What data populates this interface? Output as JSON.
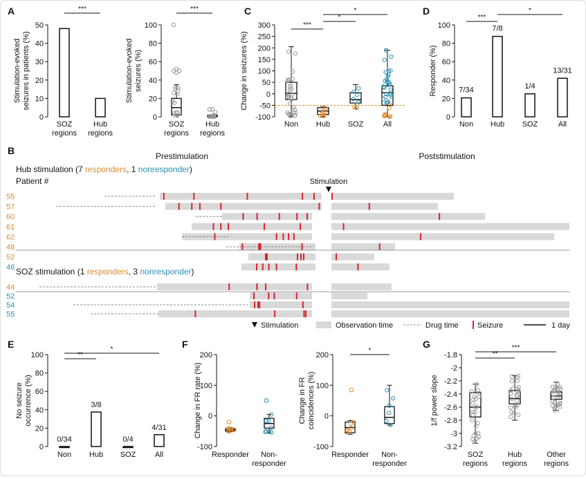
{
  "panels": {
    "A": {
      "letter": "A",
      "left": {
        "ylabel": [
          "Stimulation-evoked",
          "seizures in patients (%)"
        ],
        "yticks": [
          0,
          10,
          20,
          30,
          40,
          50
        ],
        "ylim": [
          0,
          50
        ],
        "categories": [
          [
            "SOZ",
            "regions"
          ],
          [
            "Hub",
            "regions"
          ]
        ],
        "values": [
          48,
          10
        ],
        "sig": "***"
      },
      "right": {
        "ylabel": [
          "Stimulation-evoked",
          "seizures (%)"
        ],
        "yticks": [
          0,
          20,
          40,
          60,
          80,
          100
        ],
        "ylim": [
          0,
          100
        ],
        "categories": [
          [
            "SOZ",
            "regions"
          ],
          [
            "Hub",
            "regions"
          ]
        ],
        "boxes": [
          {
            "q1": 2,
            "med": 10,
            "q3": 20,
            "min": 0,
            "max": 35,
            "outliers": [
              100,
              52,
              50,
              50,
              48
            ]
          },
          {
            "q1": 0,
            "med": 1,
            "q3": 2,
            "min": 0,
            "max": 2,
            "outliers": [
              8,
              8,
              5
            ]
          }
        ],
        "sig": "***"
      }
    },
    "C": {
      "letter": "C",
      "ylabel": "Change in seizures (%)",
      "yticks": [
        -100,
        -50,
        0,
        50,
        100,
        150,
        200,
        250,
        300
      ],
      "ylim": [
        -100,
        300
      ],
      "categories": [
        "Non",
        "Hub",
        "SOZ",
        "All"
      ],
      "refline": -50,
      "boxes": [
        {
          "q1": -25,
          "med": 2,
          "q3": 50,
          "min": -100,
          "max": 205
        },
        {
          "q1": -90,
          "med": -75,
          "q3": -60,
          "min": -100,
          "max": -55
        },
        {
          "q1": -40,
          "med": -25,
          "q3": 5,
          "min": -65,
          "max": 40
        },
        {
          "q1": -50,
          "med": 5,
          "q3": 35,
          "min": -100,
          "max": 190
        }
      ],
      "sig": [
        {
          "from": 0,
          "to": 1,
          "label": "***"
        },
        {
          "from": 1,
          "to": 2,
          "label": "*"
        },
        {
          "from": 1,
          "to": 3,
          "label": "*"
        }
      ]
    },
    "D": {
      "letter": "D",
      "ylabel": "Responder (%)",
      "yticks": [
        0,
        20,
        40,
        60,
        80,
        100
      ],
      "ylim": [
        0,
        100
      ],
      "categories": [
        "Non",
        "Hub",
        "SOZ",
        "All"
      ],
      "values": [
        20.6,
        87.5,
        25,
        41.9
      ],
      "labels": [
        "7/34",
        "7/8",
        "1/4",
        "13/31"
      ],
      "sig": [
        {
          "from": 0,
          "to": 1,
          "label": "***"
        },
        {
          "from": 1,
          "to": 3,
          "label": "*"
        }
      ]
    },
    "B": {
      "letter": "B",
      "prestim": "Prestimulation",
      "poststim": "Poststimulation",
      "hub_title": {
        "a": "Hub stimulation (7 ",
        "b": "responders",
        ",c": ", 1 ",
        "d": "nonresponder",
        "e": ")"
      },
      "soz_title": {
        "a": "SOZ stimulation (1 ",
        "b": "responders",
        "c": ", 3 ",
        "d": "nonresponder",
        "e": ")"
      },
      "patient_label": "Patient #",
      "stim_label": "Stimulation",
      "hub_patients": [
        "55",
        "57",
        "60",
        "61",
        "62",
        "48",
        "52",
        "46"
      ],
      "soz_patients": [
        "44",
        "52",
        "54",
        "55"
      ],
      "legend": {
        "stim": "Stimulation",
        "obs": "Observation time",
        "drug": "Drug time",
        "seizure": "Seizure",
        "day": "1 day"
      }
    },
    "E": {
      "letter": "E",
      "ylabel": [
        "No seizure",
        "occurrence (%)"
      ],
      "yticks": [
        0,
        20,
        40,
        60,
        80,
        100
      ],
      "ylim": [
        0,
        100
      ],
      "categories": [
        "Non",
        "Hub",
        "SOZ",
        "All"
      ],
      "values": [
        0,
        37.5,
        0,
        12.9
      ],
      "labels": [
        "0/34",
        "3/8",
        "0/4",
        "4/31"
      ],
      "sig": [
        {
          "from": 0,
          "to": 1,
          "label": "**"
        },
        {
          "from": 0,
          "to": 3,
          "label": "*"
        }
      ]
    },
    "F": {
      "letter": "F",
      "left": {
        "ylabel": "Change in FR rate (%)",
        "yticks": [
          -100,
          0,
          100,
          200
        ],
        "ylim": [
          -100,
          200
        ],
        "categories": [
          [
            "Responder"
          ],
          [
            "Non-",
            "responder"
          ]
        ],
        "boxes": [
          {
            "q1": -50,
            "med": -46,
            "q3": -42,
            "min": -52,
            "max": -38
          },
          {
            "q1": -40,
            "med": -25,
            "q3": -8,
            "min": -55,
            "max": 5
          }
        ]
      },
      "right": {
        "ylabel": [
          "Change in FR",
          "coincidences (%)"
        ],
        "yticks": [
          -100,
          0,
          100,
          200
        ],
        "ylim": [
          -100,
          200
        ],
        "categories": [
          [
            "Responder"
          ],
          [
            "Non-",
            "responder"
          ]
        ],
        "boxes": [
          {
            "q1": -55,
            "med": -38,
            "q3": -20,
            "min": -60,
            "max": -15
          },
          {
            "q1": -25,
            "med": -5,
            "q3": 30,
            "min": -30,
            "max": 100
          }
        ],
        "sig": "*"
      }
    },
    "G": {
      "letter": "G",
      "ylabel": "1/f power slope",
      "yticks": [
        -3.2,
        -3,
        -2.8,
        -2.6,
        -2.4,
        -2.2,
        -2,
        -1.8
      ],
      "ytick_labels": [
        "-3.2",
        "-3",
        "-2.8",
        "-2.6",
        "-2.4",
        "-2.2",
        "-2",
        "-1.8"
      ],
      "ylim": [
        -3.2,
        -1.8
      ],
      "categories": [
        [
          "SOZ",
          "regions"
        ],
        [
          "Hub",
          "regions"
        ],
        [
          "Other",
          "regions"
        ]
      ],
      "boxes": [
        {
          "q1": -2.75,
          "med": -2.6,
          "q3": -2.38,
          "min": -3.15,
          "max": -2.25
        },
        {
          "q1": -2.55,
          "med": -2.47,
          "q3": -2.35,
          "min": -2.8,
          "max": -2.12
        },
        {
          "q1": -2.48,
          "med": -2.43,
          "q3": -2.37,
          "min": -2.65,
          "max": -2.22
        }
      ],
      "sig": [
        {
          "from": 0,
          "to": 1,
          "label": "**"
        },
        {
          "from": 0,
          "to": 2,
          "label": "***"
        }
      ]
    }
  },
  "colors": {
    "responder": "#e08a2b",
    "nonresponder": "#2a8fb0",
    "seizure": "#d8232a",
    "obs": "#d9d9d9",
    "text": "#111111"
  },
  "chart_data": [
    {
      "type": "bar",
      "title": "",
      "categories": [
        "SOZ regions",
        "Hub regions"
      ],
      "values": [
        48,
        10
      ],
      "ylabel": "Stimulation-evoked seizures in patients (%)",
      "ylim": [
        0,
        50
      ]
    },
    {
      "type": "bar",
      "categories": [
        "Non",
        "Hub",
        "SOZ",
        "All"
      ],
      "values": [
        20.6,
        87.5,
        25,
        41.9
      ],
      "ylabel": "Responder (%)",
      "ylim": [
        0,
        100
      ]
    },
    {
      "type": "bar",
      "categories": [
        "Non",
        "Hub",
        "SOZ",
        "All"
      ],
      "values": [
        0,
        37.5,
        0,
        12.9
      ],
      "ylabel": "No seizure occurrence (%)",
      "ylim": [
        0,
        100
      ]
    },
    {
      "type": "scatter",
      "categories": [
        "Non",
        "Hub",
        "SOZ",
        "All"
      ],
      "ylabel": "Change in seizures (%)",
      "ylim": [
        -100,
        300
      ]
    },
    {
      "type": "scatter",
      "categories": [
        "SOZ regions",
        "Hub regions",
        "Other regions"
      ],
      "ylabel": "1/f power slope",
      "ylim": [
        -3.2,
        -1.8
      ]
    }
  ]
}
